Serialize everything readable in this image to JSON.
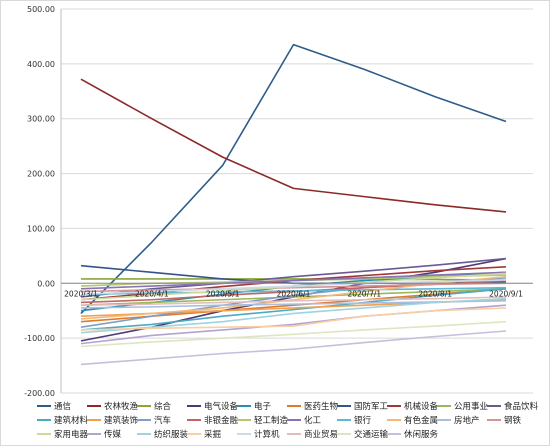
{
  "chart_data": {
    "type": "line",
    "title": "",
    "xlabel": "",
    "ylabel": "",
    "ylim": [
      -200,
      500
    ],
    "yticks": [
      "500.00",
      "400.00",
      "300.00",
      "200.00",
      "100.00",
      "0.00",
      "-100.00",
      "-200.00"
    ],
    "yticks_values": [
      500,
      400,
      300,
      200,
      100,
      0,
      -100,
      -200
    ],
    "categories": [
      "2020/3/1",
      "2020/4/1",
      "2020/5/1",
      "2020/6/1",
      "2020/7/1",
      "2020/8/1",
      "2020/9/1"
    ],
    "grid": true,
    "legend_position": "bottom",
    "series": [
      {
        "name": "通信",
        "color": "#2e5c8a",
        "values": [
          -55,
          75,
          215,
          435,
          390,
          340,
          295
        ]
      },
      {
        "name": "农林牧渔",
        "color": "#8b2a2a",
        "values": [
          372,
          300,
          230,
          173,
          158,
          143,
          130
        ]
      },
      {
        "name": "综合",
        "color": "#8aa63b",
        "values": [
          8,
          8,
          8,
          8,
          7,
          7,
          6
        ]
      },
      {
        "name": "电气设备",
        "color": "#4b3a75",
        "values": [
          -105,
          -80,
          -50,
          -25,
          0,
          20,
          45
        ]
      },
      {
        "name": "电子",
        "color": "#2a8fa8",
        "values": [
          -50,
          -35,
          -20,
          -5,
          5,
          12,
          20
        ]
      },
      {
        "name": "医药生物",
        "color": "#e07a2a",
        "values": [
          -70,
          -60,
          -50,
          -40,
          -30,
          -20,
          -10
        ]
      },
      {
        "name": "国防军工",
        "color": "#34558a",
        "values": [
          32,
          20,
          8,
          0,
          0,
          1,
          2
        ]
      },
      {
        "name": "机械设备",
        "color": "#a33838",
        "values": [
          -30,
          -18,
          -6,
          5,
          14,
          23,
          30
        ]
      },
      {
        "name": "公用事业",
        "color": "#9ab85a",
        "values": [
          -40,
          -35,
          -30,
          -25,
          -20,
          -15,
          -10
        ]
      },
      {
        "name": "食品饮料",
        "color": "#6a5a94",
        "values": [
          -25,
          -10,
          0,
          12,
          22,
          33,
          45
        ]
      },
      {
        "name": "建筑材料",
        "color": "#4aaac2",
        "values": [
          -85,
          -75,
          -60,
          -48,
          -35,
          -22,
          -10
        ]
      },
      {
        "name": "建筑装饰",
        "color": "#f0a050",
        "values": [
          -60,
          -55,
          -50,
          -45,
          -40,
          -35,
          -30
        ]
      },
      {
        "name": "汽车",
        "color": "#7f9fc8",
        "values": [
          -80,
          -60,
          -40,
          -22,
          -8,
          2,
          10
        ]
      },
      {
        "name": "非银金融",
        "color": "#c46464",
        "values": [
          -35,
          -30,
          -22,
          -15,
          -8,
          -2,
          5
        ]
      },
      {
        "name": "轻工制造",
        "color": "#b2c870",
        "values": [
          -5,
          0,
          2,
          5,
          8,
          12,
          15
        ]
      },
      {
        "name": "化工",
        "color": "#8a72b4",
        "values": [
          -10,
          -5,
          0,
          5,
          10,
          15,
          20
        ]
      },
      {
        "name": "银行",
        "color": "#5fb8d4",
        "values": [
          -20,
          -18,
          -16,
          -14,
          -12,
          -10,
          -8
        ]
      },
      {
        "name": "有色金属",
        "color": "#f5b878",
        "values": [
          -65,
          -55,
          -45,
          -30,
          -15,
          0,
          12
        ]
      },
      {
        "name": "房地产",
        "color": "#a7bede",
        "values": [
          -45,
          -43,
          -40,
          -38,
          -36,
          -34,
          -32
        ]
      },
      {
        "name": "钢铁",
        "color": "#d49494",
        "values": [
          -15,
          -12,
          -10,
          -8,
          -5,
          -2,
          0
        ]
      },
      {
        "name": "家用电器",
        "color": "#ccdb9c",
        "values": [
          -30,
          -22,
          -14,
          -6,
          2,
          10,
          18
        ]
      },
      {
        "name": "传媒",
        "color": "#b4a2d0",
        "values": [
          -110,
          -95,
          -85,
          -75,
          -60,
          -50,
          -40
        ]
      },
      {
        "name": "纺织服装",
        "color": "#9fd2e2",
        "values": [
          -90,
          -80,
          -70,
          -55,
          -45,
          -35,
          -28
        ]
      },
      {
        "name": "采掘",
        "color": "#f8cfa4",
        "values": [
          -85,
          -82,
          -80,
          -78,
          -60,
          -50,
          -45
        ]
      },
      {
        "name": "计算机",
        "color": "#cdd8ea",
        "values": [
          -20,
          -15,
          -10,
          -5,
          0,
          3,
          6
        ]
      },
      {
        "name": "商业贸易",
        "color": "#e4bcbc",
        "values": [
          -40,
          -38,
          -35,
          -32,
          -30,
          -28,
          -25
        ]
      },
      {
        "name": "交通运输",
        "color": "#dde6c0",
        "values": [
          -115,
          -107,
          -100,
          -93,
          -85,
          -78,
          -70
        ]
      },
      {
        "name": "休闲服务",
        "color": "#c8bddc",
        "values": [
          -148,
          -138,
          -128,
          -120,
          -108,
          -97,
          -87
        ]
      }
    ]
  }
}
